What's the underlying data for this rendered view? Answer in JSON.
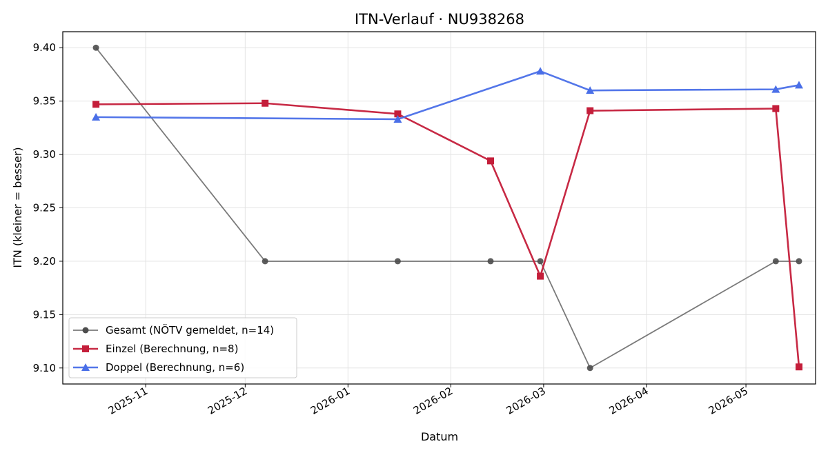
{
  "chart_data": {
    "type": "line",
    "title": "ITN-Verlauf · NU938268",
    "xlabel": "Datum",
    "ylabel": "ITN  (kleiner = besser)",
    "xlim": [
      "2025-10-07",
      "2026-05-22"
    ],
    "ylim": [
      9.085,
      9.415
    ],
    "x_ticks": [
      "2025-11",
      "2025-12",
      "2026-01",
      "2026-02",
      "2026-03",
      "2026-04",
      "2026-05"
    ],
    "y_ticks": [
      "9.10",
      "9.15",
      "9.20",
      "9.25",
      "9.30",
      "9.35",
      "9.40"
    ],
    "grid": true,
    "legend_position": "lower-left",
    "series": [
      {
        "name": "Gesamt (NÖTV gemeldet, n=14)",
        "color": "#4d4d4d",
        "marker": "circle",
        "points": [
          {
            "x": "2025-10-17",
            "y": 9.4
          },
          {
            "x": "2025-12-07",
            "y": 9.2
          },
          {
            "x": "2026-01-16",
            "y": 9.2
          },
          {
            "x": "2026-02-13",
            "y": 9.2
          },
          {
            "x": "2026-02-28",
            "y": 9.2
          },
          {
            "x": "2026-03-15",
            "y": 9.1
          },
          {
            "x": "2026-05-10",
            "y": 9.2
          },
          {
            "x": "2026-05-17",
            "y": 9.2
          }
        ]
      },
      {
        "name": "Einzel (Berechnung, n=8)",
        "color": "#c41e3a",
        "marker": "square",
        "points": [
          {
            "x": "2025-10-17",
            "y": 9.347
          },
          {
            "x": "2025-12-07",
            "y": 9.348
          },
          {
            "x": "2026-01-16",
            "y": 9.338
          },
          {
            "x": "2026-02-13",
            "y": 9.294
          },
          {
            "x": "2026-02-28",
            "y": 9.186
          },
          {
            "x": "2026-03-15",
            "y": 9.341
          },
          {
            "x": "2026-05-10",
            "y": 9.343
          },
          {
            "x": "2026-05-17",
            "y": 9.101
          }
        ]
      },
      {
        "name": "Doppel (Berechnung, n=6)",
        "color": "#4a6fe8",
        "marker": "triangle",
        "points": [
          {
            "x": "2025-10-17",
            "y": 9.335
          },
          {
            "x": "2026-01-16",
            "y": 9.333
          },
          {
            "x": "2026-02-28",
            "y": 9.378
          },
          {
            "x": "2026-03-15",
            "y": 9.36
          },
          {
            "x": "2026-05-10",
            "y": 9.361
          },
          {
            "x": "2026-05-17",
            "y": 9.365
          }
        ]
      }
    ]
  }
}
